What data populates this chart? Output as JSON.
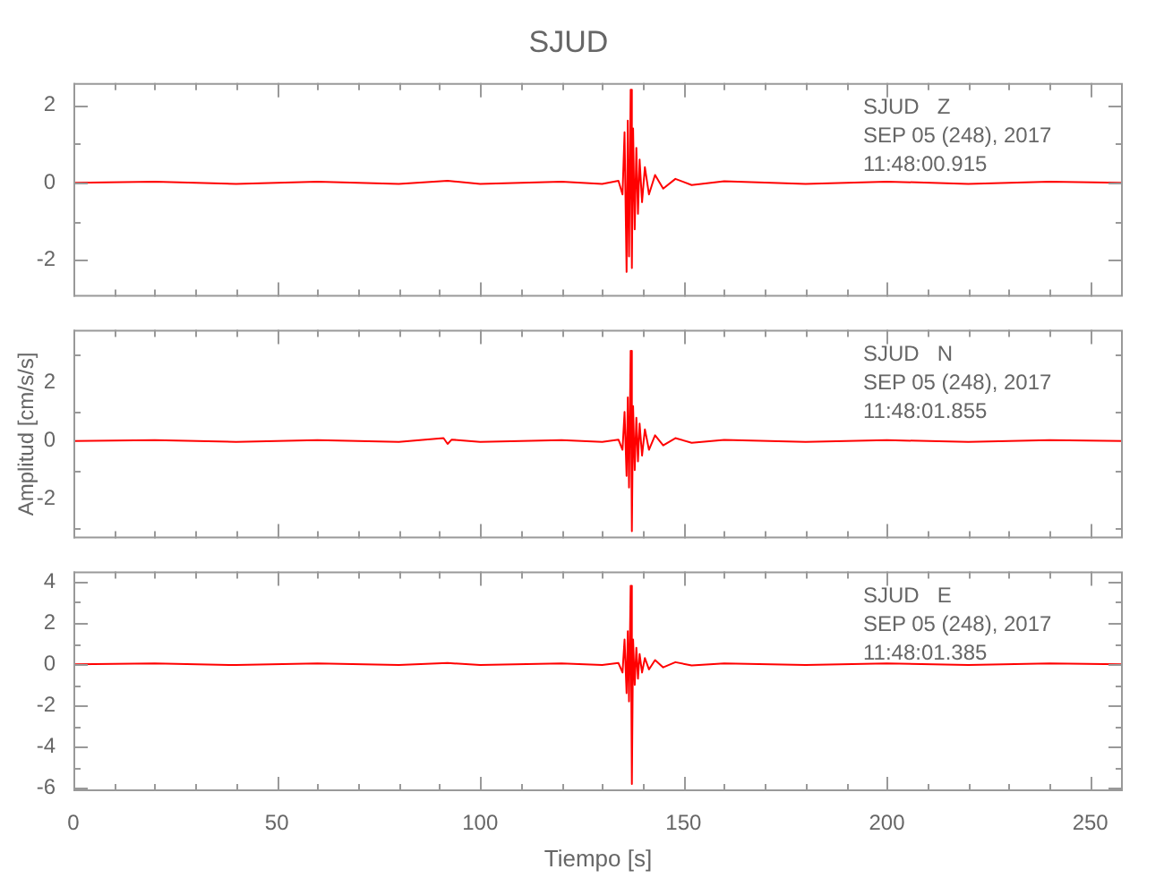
{
  "chart_data": [
    {
      "type": "line",
      "title": "SJUD",
      "marker": "none",
      "tick_labels": "y",
      "annotations": [
        "SJUD   Z",
        "SEP 05 (248), 2017",
        "11:48:00.915"
      ],
      "xlim": [
        0,
        258
      ],
      "xticks": [
        0,
        {
          "value": 10,
          "label": null
        },
        {
          "value": 20,
          "label": null
        },
        {
          "value": 30,
          "label": null
        },
        {
          "value": 40,
          "label": null
        },
        50,
        {
          "value": 60,
          "label": null
        },
        {
          "value": 70,
          "label": null
        },
        {
          "value": 80,
          "label": null
        },
        {
          "value": 90,
          "label": null
        },
        100,
        {
          "value": 110,
          "label": null
        },
        {
          "value": 120,
          "label": null
        },
        {
          "value": 130,
          "label": null
        },
        {
          "value": 140,
          "label": null
        },
        150,
        {
          "value": 160,
          "label": null
        },
        {
          "value": 170,
          "label": null
        },
        {
          "value": 180,
          "label": null
        },
        {
          "value": 190,
          "label": null
        },
        200,
        {
          "value": 210,
          "label": null
        },
        {
          "value": 220,
          "label": null
        },
        {
          "value": 230,
          "label": null
        },
        {
          "value": 240,
          "label": null
        },
        250
      ],
      "ylim": [
        -2.94,
        2.57
      ],
      "yticks": [
        -2,
        {
          "value": -1,
          "label": null
        },
        0,
        {
          "value": 1,
          "label": null
        },
        2
      ],
      "series": [
        {
          "color": "#ff0000",
          "x": [
            0,
            20,
            40,
            60,
            80,
            92,
            100,
            120,
            130,
            134,
            135,
            135.5,
            136,
            136.3,
            136.6,
            137,
            137.3,
            137.6,
            138,
            138.4,
            138.8,
            139.2,
            139.8,
            140.5,
            141.5,
            143,
            145,
            148,
            152,
            160,
            180,
            200,
            220,
            240,
            258
          ],
          "values": [
            0,
            0.03,
            -0.03,
            0.03,
            -0.03,
            0.05,
            -0.03,
            0.03,
            -0.03,
            0.05,
            -0.3,
            1.3,
            -2.3,
            1.6,
            -1.9,
            2.4,
            -2.2,
            1.4,
            -1.2,
            0.9,
            -0.8,
            0.6,
            -0.5,
            0.4,
            -0.3,
            0.2,
            -0.15,
            0.1,
            -0.06,
            0.04,
            -0.03,
            0.03,
            -0.03,
            0.03,
            0
          ]
        }
      ]
    },
    {
      "type": "line",
      "ylabel": "Amplitud [cm/s/s]",
      "marker": "none",
      "tick_labels": "y",
      "annotations": [
        "SJUD   N",
        "SEP 05 (248), 2017",
        "11:48:01.855"
      ],
      "xlim": [
        0,
        258
      ],
      "xticks": [
        0,
        {
          "value": 10,
          "label": null
        },
        {
          "value": 20,
          "label": null
        },
        {
          "value": 30,
          "label": null
        },
        {
          "value": 40,
          "label": null
        },
        50,
        {
          "value": 60,
          "label": null
        },
        {
          "value": 70,
          "label": null
        },
        {
          "value": 80,
          "label": null
        },
        {
          "value": 90,
          "label": null
        },
        100,
        {
          "value": 110,
          "label": null
        },
        {
          "value": 120,
          "label": null
        },
        {
          "value": 130,
          "label": null
        },
        {
          "value": 140,
          "label": null
        },
        150,
        {
          "value": 160,
          "label": null
        },
        {
          "value": 170,
          "label": null
        },
        {
          "value": 180,
          "label": null
        },
        {
          "value": 190,
          "label": null
        },
        200,
        {
          "value": 210,
          "label": null
        },
        {
          "value": 220,
          "label": null
        },
        {
          "value": 230,
          "label": null
        },
        {
          "value": 240,
          "label": null
        },
        250
      ],
      "ylim": [
        -3.35,
        3.83
      ],
      "yticks": [
        {
          "value": -3,
          "label": null
        },
        -2,
        {
          "value": -1,
          "label": null
        },
        0,
        {
          "value": 1,
          "label": null
        },
        2,
        {
          "value": 3,
          "label": null
        }
      ],
      "series": [
        {
          "color": "#ff0000",
          "x": [
            0,
            20,
            40,
            60,
            80,
            91,
            92,
            93,
            100,
            120,
            130,
            134,
            135,
            135.5,
            136,
            136.3,
            136.6,
            137,
            137.3,
            137.6,
            138,
            138.4,
            138.8,
            139.2,
            139.8,
            140.5,
            141.5,
            143,
            145,
            148,
            152,
            160,
            180,
            200,
            220,
            240,
            258
          ],
          "values": [
            0,
            0.03,
            -0.03,
            0.03,
            -0.03,
            0.1,
            -0.1,
            0.05,
            -0.03,
            0.03,
            -0.03,
            0.05,
            -0.3,
            1.0,
            -1.2,
            1.5,
            -1.6,
            3.1,
            -3.1,
            1.2,
            -1.0,
            0.8,
            -0.7,
            0.6,
            -0.5,
            0.4,
            -0.3,
            0.2,
            -0.15,
            0.1,
            -0.06,
            0.04,
            -0.03,
            0.03,
            -0.03,
            0.03,
            0
          ]
        }
      ]
    },
    {
      "type": "line",
      "xlabel": "Tiempo [s]",
      "marker": "none",
      "annotations": [
        "SJUD   E",
        "SEP 05 (248), 2017",
        "11:48:01.385"
      ],
      "xlim": [
        0,
        258
      ],
      "xticks": [
        0,
        {
          "value": 10,
          "label": null
        },
        {
          "value": 20,
          "label": null
        },
        {
          "value": 30,
          "label": null
        },
        {
          "value": 40,
          "label": null
        },
        50,
        {
          "value": 60,
          "label": null
        },
        {
          "value": 70,
          "label": null
        },
        {
          "value": 80,
          "label": null
        },
        {
          "value": 90,
          "label": null
        },
        100,
        {
          "value": 110,
          "label": null
        },
        {
          "value": 120,
          "label": null
        },
        {
          "value": 130,
          "label": null
        },
        {
          "value": 140,
          "label": null
        },
        150,
        {
          "value": 160,
          "label": null
        },
        {
          "value": 170,
          "label": null
        },
        {
          "value": 180,
          "label": null
        },
        {
          "value": 190,
          "label": null
        },
        200,
        {
          "value": 210,
          "label": null
        },
        {
          "value": 220,
          "label": null
        },
        {
          "value": 230,
          "label": null
        },
        {
          "value": 240,
          "label": null
        },
        250
      ],
      "ylim": [
        -6.15,
        4.5
      ],
      "yticks": [
        -6,
        {
          "value": -5,
          "label": null
        },
        -4,
        {
          "value": -3,
          "label": null
        },
        -2,
        {
          "value": -1,
          "label": null
        },
        0,
        {
          "value": 1,
          "label": null
        },
        2,
        {
          "value": 3,
          "label": null
        },
        4
      ],
      "series": [
        {
          "color": "#ff0000",
          "x": [
            0,
            20,
            40,
            60,
            80,
            92,
            100,
            120,
            130,
            134,
            135,
            135.5,
            136,
            136.3,
            136.6,
            137,
            137.3,
            137.6,
            138,
            138.4,
            138.8,
            139.2,
            139.8,
            140.5,
            141.5,
            143,
            145,
            148,
            152,
            160,
            180,
            200,
            220,
            240,
            258
          ],
          "values": [
            0,
            0.04,
            -0.04,
            0.04,
            -0.04,
            0.06,
            -0.04,
            0.04,
            -0.04,
            0.06,
            -0.4,
            1.2,
            -1.4,
            1.6,
            -1.8,
            3.8,
            -5.8,
            1.2,
            -1.0,
            0.8,
            -0.7,
            0.5,
            -0.4,
            0.3,
            -0.25,
            0.2,
            -0.15,
            0.1,
            -0.06,
            0.04,
            -0.04,
            0.04,
            -0.04,
            0.04,
            0
          ]
        }
      ]
    }
  ]
}
